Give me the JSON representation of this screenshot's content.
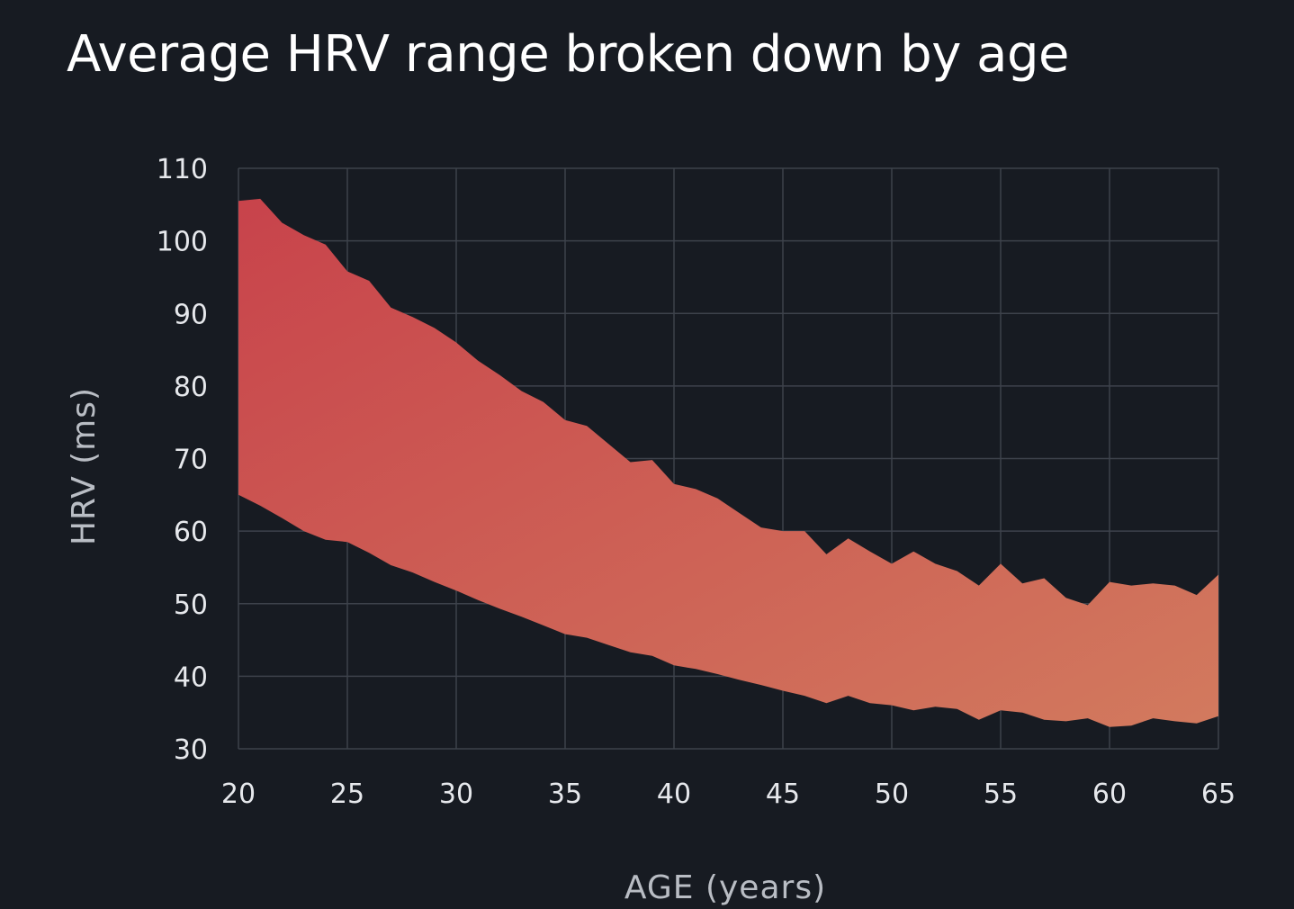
{
  "chart_data": {
    "type": "area",
    "title": "Average HRV range broken down by age",
    "xlabel": "AGE (years)",
    "ylabel": "HRV (ms)",
    "xlim": [
      20,
      65
    ],
    "ylim": [
      30,
      110
    ],
    "x_ticks": [
      "20",
      "25",
      "30",
      "35",
      "40",
      "45",
      "50",
      "55",
      "60",
      "65"
    ],
    "y_ticks": [
      "30",
      "40",
      "50",
      "60",
      "70",
      "80",
      "90",
      "100",
      "110"
    ],
    "grid": true,
    "legend": "none",
    "colors": {
      "background": "#171b22",
      "grid": "#3d424b",
      "fill_start": "#c8434b",
      "fill_end": "#d27a5e"
    },
    "series": [
      {
        "kind": "upper_bound",
        "x": [
          20,
          21,
          22,
          23,
          24,
          25,
          26,
          27,
          28,
          29,
          30,
          31,
          32,
          33,
          34,
          35,
          36,
          37,
          38,
          39,
          40,
          41,
          42,
          43,
          44,
          45,
          46,
          47,
          48,
          49,
          50,
          51,
          52,
          53,
          54,
          55,
          56,
          57,
          58,
          59,
          60,
          61,
          62,
          63,
          64,
          65
        ],
        "values": [
          105.5,
          105.8,
          102.5,
          100.8,
          99.5,
          95.8,
          94.5,
          90.8,
          89.5,
          88,
          86,
          83.5,
          81.5,
          79.3,
          77.8,
          75.3,
          74.5,
          72,
          69.5,
          69.8,
          66.5,
          65.8,
          64.5,
          62.5,
          60.5,
          60,
          60,
          56.8,
          59,
          57.2,
          55.5,
          57.2,
          55.5,
          54.5,
          52.5,
          55.5,
          52.8,
          53.5,
          50.8,
          49.8,
          53,
          52.5,
          52.8,
          52.5,
          51.2,
          54
        ]
      },
      {
        "kind": "lower_bound",
        "x": [
          20,
          21,
          22,
          23,
          24,
          25,
          26,
          27,
          28,
          29,
          30,
          31,
          32,
          33,
          34,
          35,
          36,
          37,
          38,
          39,
          40,
          41,
          42,
          43,
          44,
          45,
          46,
          47,
          48,
          49,
          50,
          51,
          52,
          53,
          54,
          55,
          56,
          57,
          58,
          59,
          60,
          61,
          62,
          63,
          64,
          65
        ],
        "values": [
          65,
          63.5,
          61.8,
          60,
          58.8,
          58.5,
          57,
          55.3,
          54.3,
          53,
          51.8,
          50.5,
          49.3,
          48.2,
          47,
          45.8,
          45.3,
          44.3,
          43.3,
          42.8,
          41.5,
          41,
          40.3,
          39.5,
          38.8,
          38,
          37.3,
          36.3,
          37.3,
          36.3,
          36,
          35.3,
          35.8,
          35.5,
          34,
          35.3,
          35,
          34,
          33.8,
          34.2,
          33,
          33.2,
          34.2,
          33.8,
          33.5,
          34.5
        ]
      }
    ]
  }
}
